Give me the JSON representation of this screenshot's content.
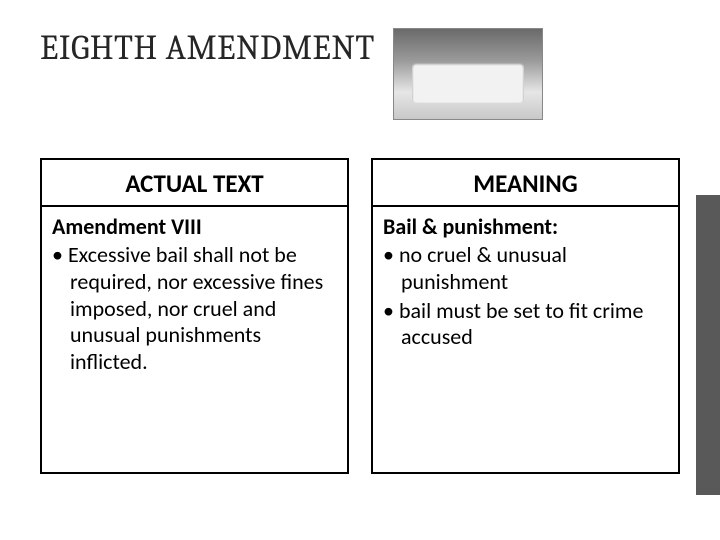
{
  "slide": {
    "title": "EIGHTH AMENDMENT",
    "image_alt": "execution-gurney-photo",
    "columns": [
      {
        "header": "ACTUAL TEXT",
        "lead": "Amendment VIII",
        "bullets": [
          "Excessive bail shall not be required, nor excessive fines imposed, nor cruel and unusual punishments inflicted."
        ]
      },
      {
        "header": "MEANING",
        "lead": "Bail & punishment:",
        "bullets": [
          "no cruel & unusual punishment",
          "bail must be set to fit crime accused"
        ]
      }
    ]
  },
  "style": {
    "background_color": "#ffffff",
    "title_font": "Cambria",
    "title_fontsize": 34,
    "title_color": "#262626",
    "body_font": "Calibri",
    "header_fontsize": 25,
    "body_fontsize": 22,
    "text_color": "#000000",
    "border_color": "#000000",
    "border_width": 2,
    "accent_bar_color": "#595959",
    "col_min_height": 265
  }
}
